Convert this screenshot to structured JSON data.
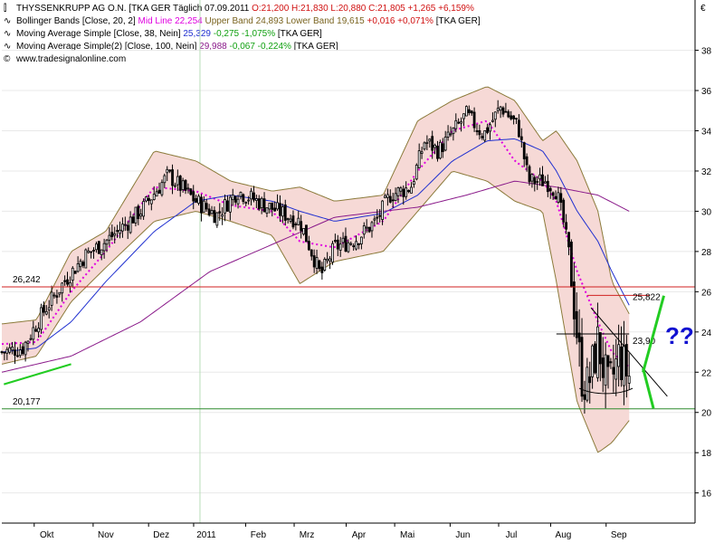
{
  "legend": {
    "main": {
      "name": "THYSSENKRUPP AG O.N. [TKA GER  Täglich 07.09.2011",
      "ohlc": "O:21,200 H:21,830 L:20,880 C:21,805",
      "change": "+1,265 +6,159%"
    },
    "bollinger": {
      "name": "Bollinger Bands [Close, 20, 2]",
      "mid": "Mid Line 22,254",
      "bands": "Upper Band 24,893 Lower Band 19,615",
      "change": "+0,016 +0,071%",
      "tag": "[TKA GER]"
    },
    "ma38": {
      "name": "Moving Average Simple [Close, 38, Nein]",
      "value": "25,329",
      "change": "-0,275 -1,075%",
      "tag": "[TKA GER]"
    },
    "ma100": {
      "name": "Moving Average Simple(2) [Close, 100, Nein]",
      "value": "29,988",
      "change": "-0,067 -0,224%",
      "tag": "[TKA GER]"
    },
    "source": "www.tradesignalonline.com"
  },
  "currency_symbol": "€",
  "colors": {
    "bollinger_fill": "#f6d9d6",
    "bollinger_edge": "#8b7a3a",
    "midline": "#e000e0",
    "ma38": "#2030d0",
    "ma100": "#8a1a8a",
    "resistance": "#d02020",
    "support": "#2e8b2e",
    "trend_green": "#22cc22",
    "question": "#1010d0",
    "change_pos": "#d01010",
    "change_neg": "#10a010"
  },
  "chart_data": {
    "type": "candlestick",
    "x_labels": [
      "Okt",
      "Nov",
      "Dez",
      "2011",
      "Feb",
      "Mrz",
      "Apr",
      "Mai",
      "Jun",
      "Jul",
      "Aug",
      "Sep"
    ],
    "y_ticks": [
      16,
      18,
      20,
      22,
      24,
      26,
      28,
      30,
      32,
      34,
      36,
      38
    ],
    "ylim": [
      14.5,
      40.5
    ],
    "grid": true,
    "horizontal_levels": [
      {
        "label": "26,242",
        "value": 26.242,
        "color": "resistance"
      },
      {
        "label": "20,177",
        "value": 20.177,
        "color": "support"
      }
    ],
    "annotations": [
      {
        "label": "25,822",
        "value": 25.822
      },
      {
        "label": "23,90",
        "value": 23.9
      },
      {
        "label": "??"
      }
    ],
    "series": [
      {
        "name": "Bollinger Bands [Close, 20, 2]",
        "anchors": [
          [
            0,
            22.4,
            24.4
          ],
          [
            0.05,
            22.8,
            24.6
          ],
          [
            0.1,
            25.5,
            28.0
          ],
          [
            0.15,
            27.2,
            29.0
          ],
          [
            0.22,
            29.5,
            33.0
          ],
          [
            0.28,
            30.0,
            32.5
          ],
          [
            0.33,
            29.5,
            31.5
          ],
          [
            0.39,
            28.8,
            31.0
          ],
          [
            0.43,
            26.4,
            31.2
          ],
          [
            0.48,
            27.5,
            30.5
          ],
          [
            0.55,
            28.0,
            30.8
          ],
          [
            0.6,
            30.0,
            34.5
          ],
          [
            0.65,
            32.0,
            35.5
          ],
          [
            0.7,
            31.5,
            36.2
          ],
          [
            0.74,
            30.5,
            35.5
          ],
          [
            0.78,
            30.0,
            33.5
          ],
          [
            0.8,
            26.5,
            34.0
          ],
          [
            0.83,
            20.5,
            32.5
          ],
          [
            0.86,
            18.0,
            30.0
          ],
          [
            0.88,
            18.5,
            26.5
          ],
          [
            0.905,
            19.6,
            24.9
          ]
        ]
      },
      {
        "name": "Mid Line 22,254",
        "anchors": [
          [
            0,
            23.4
          ],
          [
            0.05,
            23.5
          ],
          [
            0.1,
            26.0
          ],
          [
            0.15,
            28.0
          ],
          [
            0.22,
            31.2
          ],
          [
            0.28,
            31.0
          ],
          [
            0.33,
            30.3
          ],
          [
            0.39,
            30.0
          ],
          [
            0.43,
            28.5
          ],
          [
            0.48,
            28.2
          ],
          [
            0.55,
            29.5
          ],
          [
            0.6,
            32.0
          ],
          [
            0.65,
            34.0
          ],
          [
            0.7,
            34.5
          ],
          [
            0.74,
            32.5
          ],
          [
            0.78,
            31.5
          ],
          [
            0.8,
            30.5
          ],
          [
            0.83,
            27.0
          ],
          [
            0.86,
            24.5
          ],
          [
            0.88,
            23.0
          ],
          [
            0.905,
            22.25
          ]
        ]
      },
      {
        "name": "Moving Average Simple [Close, 38, Nein]",
        "anchors": [
          [
            0,
            23.0
          ],
          [
            0.05,
            23.2
          ],
          [
            0.1,
            24.5
          ],
          [
            0.15,
            26.5
          ],
          [
            0.22,
            29.0
          ],
          [
            0.28,
            30.5
          ],
          [
            0.33,
            30.8
          ],
          [
            0.39,
            30.5
          ],
          [
            0.43,
            30.0
          ],
          [
            0.48,
            29.5
          ],
          [
            0.55,
            29.9
          ],
          [
            0.6,
            30.8
          ],
          [
            0.65,
            32.5
          ],
          [
            0.7,
            33.5
          ],
          [
            0.74,
            33.6
          ],
          [
            0.78,
            33.0
          ],
          [
            0.8,
            32.0
          ],
          [
            0.83,
            30.0
          ],
          [
            0.86,
            28.5
          ],
          [
            0.88,
            27.0
          ],
          [
            0.905,
            25.33
          ]
        ]
      },
      {
        "name": "Moving Average Simple(2) [Close, 100, Nein]",
        "anchors": [
          [
            0,
            22.0
          ],
          [
            0.1,
            22.8
          ],
          [
            0.2,
            24.5
          ],
          [
            0.3,
            27.0
          ],
          [
            0.4,
            28.5
          ],
          [
            0.48,
            29.7
          ],
          [
            0.55,
            30.0
          ],
          [
            0.6,
            30.2
          ],
          [
            0.67,
            30.8
          ],
          [
            0.74,
            31.5
          ],
          [
            0.8,
            31.2
          ],
          [
            0.86,
            30.8
          ],
          [
            0.905,
            30.0
          ]
        ]
      },
      {
        "name": "THYSSENKRUPP AG O.N.",
        "anchors": [
          [
            0,
            23.0
          ],
          [
            0.03,
            23.2
          ],
          [
            0.06,
            25.0
          ],
          [
            0.09,
            26.5
          ],
          [
            0.12,
            27.8
          ],
          [
            0.15,
            28.5
          ],
          [
            0.2,
            30.0
          ],
          [
            0.24,
            31.8
          ],
          [
            0.28,
            30.5
          ],
          [
            0.31,
            29.8
          ],
          [
            0.34,
            31.0
          ],
          [
            0.38,
            30.3
          ],
          [
            0.43,
            29.5
          ],
          [
            0.46,
            26.8
          ],
          [
            0.48,
            28.2
          ],
          [
            0.51,
            28.6
          ],
          [
            0.54,
            29.5
          ],
          [
            0.56,
            30.8
          ],
          [
            0.59,
            31.2
          ],
          [
            0.61,
            33.5
          ],
          [
            0.63,
            33.0
          ],
          [
            0.67,
            34.8
          ],
          [
            0.695,
            33.8
          ],
          [
            0.72,
            35.2
          ],
          [
            0.745,
            34.2
          ],
          [
            0.76,
            31.5
          ],
          [
            0.785,
            31.5
          ],
          [
            0.8,
            31.0
          ],
          [
            0.81,
            29.5
          ],
          [
            0.82,
            27.5
          ],
          [
            0.835,
            22.0
          ],
          [
            0.845,
            21.2
          ],
          [
            0.86,
            23.5
          ],
          [
            0.875,
            21.0
          ],
          [
            0.89,
            22.8
          ],
          [
            0.905,
            21.8
          ]
        ]
      }
    ]
  }
}
